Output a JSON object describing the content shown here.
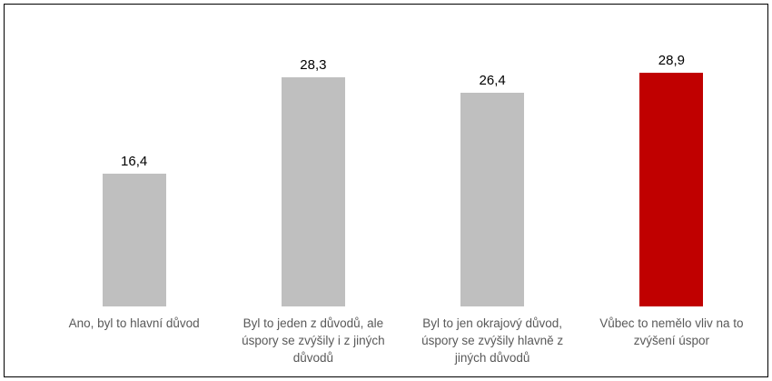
{
  "chart_data": {
    "type": "bar",
    "title": "",
    "xlabel": "",
    "ylabel": "",
    "categories": [
      "Ano, byl to hlavní důvod",
      "Byl to jeden z důvodů, ale úspory se zvýšily i z jiných důvodů",
      "Byl to jen okrajový důvod, úspory se zvýšily hlavně z jiných důvodů",
      "Vůbec to nemělo vliv na to zvýšení úspor"
    ],
    "values": [
      16.4,
      28.3,
      26.4,
      28.9
    ],
    "value_labels": [
      "16,4",
      "28,3",
      "26,4",
      "28,9"
    ],
    "bar_colors": [
      "#BFBFBF",
      "#BFBFBF",
      "#BFBFBF",
      "#C00000"
    ],
    "highlighted_category_index": 3,
    "colors": {
      "bar_default": "#BFBFBF",
      "bar_highlight": "#C00000",
      "data_label": "#000000",
      "category_label": "#595959",
      "frame_border": "#000000",
      "background": "#FFFFFF"
    },
    "ylim": [
      0,
      30
    ],
    "grid": false,
    "axes_visible": false,
    "legend": "none",
    "data_labels_shown": true
  }
}
